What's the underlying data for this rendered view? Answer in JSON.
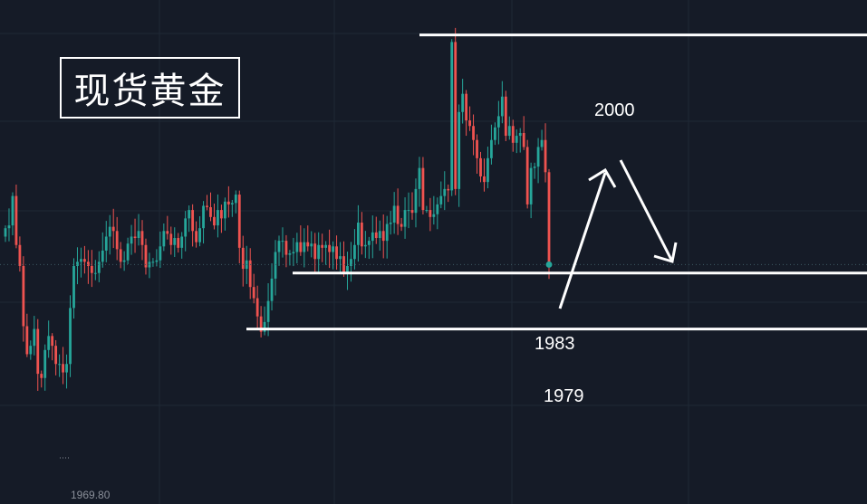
{
  "title": "现货黄金",
  "low_label": "1969.80",
  "colors": {
    "background": "#151b27",
    "up": "#26a69a",
    "down": "#ef5350",
    "annotation": "#ffffff",
    "grid": "#1f2836"
  },
  "chart_data": {
    "type": "candlestick",
    "ylim": [
      1966.5,
      2002.5
    ],
    "grid": true,
    "price_levels": [
      {
        "label": "2000",
        "value": 2000
      },
      {
        "label": "1983",
        "value": 1983
      },
      {
        "label": "1979",
        "value": 1979
      }
    ],
    "current_price": 1983.6,
    "low_marker": 1969.8,
    "closes": [
      1986.2,
      1986.4,
      1988.5,
      1985.0,
      1983.5,
      1979.2,
      1977.2,
      1977.8,
      1979.0,
      1975.8,
      1975.5,
      1977.5,
      1978.5,
      1977.8,
      1976.5,
      1976.5,
      1975.9,
      1976.5,
      1980.5,
      1983.5,
      1983.8,
      1984.0,
      1983.8,
      1983.5,
      1983.0,
      1983.0,
      1983.8,
      1984.6,
      1985.6,
      1986.3,
      1986.0,
      1984.7,
      1983.8,
      1983.9,
      1985.1,
      1985.6,
      1985.5,
      1986.0,
      1985.0,
      1983.4,
      1983.8,
      1983.8,
      1983.9,
      1984.9,
      1986.0,
      1985.8,
      1985.0,
      1985.5,
      1984.8,
      1985.6,
      1986.9,
      1987.5,
      1986.0,
      1985.2,
      1986.2,
      1987.8,
      1987.7,
      1987.0,
      1986.4,
      1987.5,
      1986.9,
      1988.1,
      1987.9,
      1988.0,
      1988.6,
      1984.8,
      1983.3,
      1983.9,
      1982.0,
      1981.2,
      1979.9,
      1978.8,
      1979.5,
      1981.0,
      1982.6,
      1984.5,
      1985.3,
      1985.3,
      1984.3,
      1984.4,
      1984.5,
      1985.2,
      1984.5,
      1985.2,
      1984.9,
      1985.1,
      1984.0,
      1985.0,
      1984.8,
      1985.0,
      1984.5,
      1984.9,
      1984.0,
      1984.2,
      1983.0,
      1983.5,
      1984.0,
      1985.0,
      1986.6,
      1984.9,
      1985.0,
      1985.3,
      1985.9,
      1985.5,
      1986.0,
      1985.3,
      1986.5,
      1986.6,
      1987.8,
      1986.5,
      1986.3,
      1987.5,
      1987.5,
      1987.3,
      1989.0,
      1990.5,
      1987.5,
      1987.5,
      1987.0,
      1987.2,
      1987.9,
      1988.5,
      1989.0,
      1988.9,
      1999.5,
      1989.0,
      1994.5,
      1995.8,
      1993.9,
      1993.5,
      1992.5,
      1991.2,
      1989.9,
      1989.5,
      1991.2,
      1992.5,
      1993.4,
      1994.2,
      1995.6,
      1992.8,
      1993.5,
      1992.3,
      1992.8,
      1993.0,
      1992.0,
      1987.9,
      1990.5,
      1990.6,
      1992.0,
      1992.5,
      1990.2,
      1983.6
    ],
    "annotations": [
      {
        "type": "arrow",
        "direction": "up"
      },
      {
        "type": "arrow",
        "direction": "down"
      }
    ]
  }
}
